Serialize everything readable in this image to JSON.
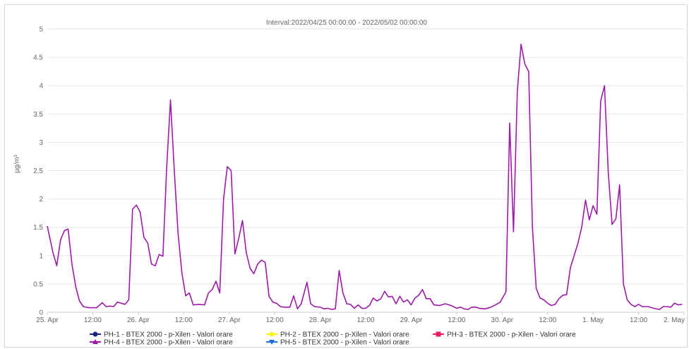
{
  "chart_data": {
    "type": "line",
    "title": "Interval:2022/04/25 00:00:00 - 2022/05/02 00:00:00",
    "xlabel": "",
    "ylabel": "µg/m³",
    "ylim": [
      0,
      5
    ],
    "yticks": [
      "0",
      "0.5",
      "1",
      "1.5",
      "2",
      "2.5",
      "3",
      "3.5",
      "4",
      "4.5",
      "5"
    ],
    "xlim": [
      "2022-04-25 00:00",
      "2022-05-02 00:00"
    ],
    "xticks": [
      {
        "t": "2022-04-25 00:00",
        "label": "25. Apr"
      },
      {
        "t": "2022-04-25 12:00",
        "label": "12:00"
      },
      {
        "t": "2022-04-26 00:00",
        "label": "26. Apr"
      },
      {
        "t": "2022-04-26 12:00",
        "label": "12:00"
      },
      {
        "t": "2022-04-27 00:00",
        "label": "27. Apr"
      },
      {
        "t": "2022-04-27 12:00",
        "label": "12:00"
      },
      {
        "t": "2022-04-28 00:00",
        "label": "28. Apr"
      },
      {
        "t": "2022-04-28 12:00",
        "label": "12:00"
      },
      {
        "t": "2022-04-29 00:00",
        "label": "29. Apr"
      },
      {
        "t": "2022-04-29 12:00",
        "label": "12:00"
      },
      {
        "t": "2022-04-30 00:00",
        "label": "30. Apr"
      },
      {
        "t": "2022-04-30 12:00",
        "label": "12:00"
      },
      {
        "t": "2022-05-01 00:00",
        "label": "1. May"
      },
      {
        "t": "2022-05-01 12:00",
        "label": "12:00"
      },
      {
        "t": "2022-05-02 00:00",
        "label": "2. May"
      }
    ],
    "grid": true,
    "legend_position": "bottom",
    "series": [
      {
        "name": "PH-1 - BTEX 2000 - p-Xilen - Valori orare",
        "color": "#1a237e",
        "marker": "circle",
        "points": []
      },
      {
        "name": "PH-2 - BTEX 2000 - p-Xilen - Valori orare",
        "color": "#ffee00",
        "marker": "diamond",
        "points": []
      },
      {
        "name": "PH-3 - BTEX 2000 - p-Xilen - Valori orare",
        "color": "#e91e63",
        "marker": "square",
        "points": []
      },
      {
        "name": "PH-4 - BTEX 2000 - p-Xilen - Valori orare",
        "color": "#9c1aa8",
        "marker": "triangle",
        "points": [
          [
            "2022-04-25 00:00",
            1.52
          ],
          [
            "2022-04-25 01:30",
            1.05
          ],
          [
            "2022-04-25 02:30",
            0.82
          ],
          [
            "2022-04-25 03:30",
            1.28
          ],
          [
            "2022-04-25 04:30",
            1.44
          ],
          [
            "2022-04-25 05:30",
            1.47
          ],
          [
            "2022-04-25 06:30",
            0.85
          ],
          [
            "2022-04-25 07:30",
            0.45
          ],
          [
            "2022-04-25 08:30",
            0.2
          ],
          [
            "2022-04-25 09:30",
            0.1
          ],
          [
            "2022-04-25 11:00",
            0.08
          ],
          [
            "2022-04-25 13:00",
            0.08
          ],
          [
            "2022-04-25 14:30",
            0.17
          ],
          [
            "2022-04-25 15:30",
            0.1
          ],
          [
            "2022-04-25 16:30",
            0.11
          ],
          [
            "2022-04-25 17:30",
            0.1
          ],
          [
            "2022-04-25 18:30",
            0.18
          ],
          [
            "2022-04-25 20:30",
            0.14
          ],
          [
            "2022-04-25 21:30",
            0.22
          ],
          [
            "2022-04-25 22:30",
            1.82
          ],
          [
            "2022-04-25 23:30",
            1.89
          ],
          [
            "2022-04-26 00:30",
            1.77
          ],
          [
            "2022-04-26 01:30",
            1.32
          ],
          [
            "2022-04-26 02:30",
            1.22
          ],
          [
            "2022-04-26 03:30",
            0.85
          ],
          [
            "2022-04-26 04:30",
            0.82
          ],
          [
            "2022-04-26 05:30",
            1.02
          ],
          [
            "2022-04-26 06:30",
            0.99
          ],
          [
            "2022-04-26 07:30",
            2.55
          ],
          [
            "2022-04-26 08:30",
            3.75
          ],
          [
            "2022-04-26 09:30",
            2.5
          ],
          [
            "2022-04-26 10:30",
            1.4
          ],
          [
            "2022-04-26 11:30",
            0.7
          ],
          [
            "2022-04-26 12:30",
            0.29
          ],
          [
            "2022-04-26 13:30",
            0.34
          ],
          [
            "2022-04-26 14:30",
            0.13
          ],
          [
            "2022-04-26 16:00",
            0.14
          ],
          [
            "2022-04-26 17:30",
            0.13
          ],
          [
            "2022-04-26 18:30",
            0.34
          ],
          [
            "2022-04-26 19:30",
            0.4
          ],
          [
            "2022-04-26 20:30",
            0.55
          ],
          [
            "2022-04-26 21:30",
            0.34
          ],
          [
            "2022-04-26 22:30",
            2.0
          ],
          [
            "2022-04-26 23:30",
            2.57
          ],
          [
            "2022-04-27 00:30",
            2.5
          ],
          [
            "2022-04-27 01:30",
            1.03
          ],
          [
            "2022-04-27 02:30",
            1.3
          ],
          [
            "2022-04-27 03:30",
            1.62
          ],
          [
            "2022-04-27 04:30",
            1.05
          ],
          [
            "2022-04-27 05:30",
            0.78
          ],
          [
            "2022-04-27 06:30",
            0.68
          ],
          [
            "2022-04-27 07:30",
            0.85
          ],
          [
            "2022-04-27 08:30",
            0.92
          ],
          [
            "2022-04-27 09:30",
            0.88
          ],
          [
            "2022-04-27 10:30",
            0.28
          ],
          [
            "2022-04-27 11:30",
            0.18
          ],
          [
            "2022-04-27 12:30",
            0.16
          ],
          [
            "2022-04-27 13:30",
            0.1
          ],
          [
            "2022-04-27 14:30",
            0.09
          ],
          [
            "2022-04-27 16:00",
            0.09
          ],
          [
            "2022-04-27 17:00",
            0.29
          ],
          [
            "2022-04-27 18:00",
            0.06
          ],
          [
            "2022-04-27 19:00",
            0.15
          ],
          [
            "2022-04-27 20:30",
            0.53
          ],
          [
            "2022-04-27 21:30",
            0.15
          ],
          [
            "2022-04-27 22:30",
            0.1
          ],
          [
            "2022-04-28 00:00",
            0.09
          ],
          [
            "2022-04-28 01:00",
            0.06
          ],
          [
            "2022-04-28 02:00",
            0.07
          ],
          [
            "2022-04-28 03:00",
            0.05
          ],
          [
            "2022-04-28 04:00",
            0.06
          ],
          [
            "2022-04-28 05:00",
            0.74
          ],
          [
            "2022-04-28 06:00",
            0.34
          ],
          [
            "2022-04-28 07:00",
            0.15
          ],
          [
            "2022-04-28 08:00",
            0.14
          ],
          [
            "2022-04-28 09:00",
            0.07
          ],
          [
            "2022-04-28 10:00",
            0.13
          ],
          [
            "2022-04-28 11:00",
            0.07
          ],
          [
            "2022-04-28 12:00",
            0.07
          ],
          [
            "2022-04-28 13:00",
            0.12
          ],
          [
            "2022-04-28 14:00",
            0.25
          ],
          [
            "2022-04-28 15:00",
            0.2
          ],
          [
            "2022-04-28 16:00",
            0.24
          ],
          [
            "2022-04-28 17:00",
            0.37
          ],
          [
            "2022-04-28 18:00",
            0.27
          ],
          [
            "2022-04-28 19:00",
            0.28
          ],
          [
            "2022-04-28 20:00",
            0.15
          ],
          [
            "2022-04-28 21:00",
            0.28
          ],
          [
            "2022-04-28 22:00",
            0.18
          ],
          [
            "2022-04-28 23:00",
            0.22
          ],
          [
            "2022-04-29 00:00",
            0.13
          ],
          [
            "2022-04-29 01:00",
            0.25
          ],
          [
            "2022-04-29 02:00",
            0.3
          ],
          [
            "2022-04-29 03:00",
            0.4
          ],
          [
            "2022-04-29 04:00",
            0.24
          ],
          [
            "2022-04-29 05:00",
            0.24
          ],
          [
            "2022-04-29 06:00",
            0.13
          ],
          [
            "2022-04-29 07:30",
            0.12
          ],
          [
            "2022-04-29 09:00",
            0.15
          ],
          [
            "2022-04-29 10:30",
            0.12
          ],
          [
            "2022-04-29 12:00",
            0.07
          ],
          [
            "2022-04-29 13:00",
            0.09
          ],
          [
            "2022-04-29 14:00",
            0.06
          ],
          [
            "2022-04-29 15:00",
            0.05
          ],
          [
            "2022-04-29 16:00",
            0.09
          ],
          [
            "2022-04-29 17:00",
            0.09
          ],
          [
            "2022-04-29 18:00",
            0.07
          ],
          [
            "2022-04-29 19:30",
            0.06
          ],
          [
            "2022-04-29 21:00",
            0.09
          ],
          [
            "2022-04-29 22:30",
            0.14
          ],
          [
            "2022-04-29 23:30",
            0.18
          ],
          [
            "2022-04-30 01:00",
            0.36
          ],
          [
            "2022-04-30 02:00",
            3.34
          ],
          [
            "2022-04-30 03:00",
            1.42
          ],
          [
            "2022-04-30 04:00",
            3.9
          ],
          [
            "2022-04-30 05:00",
            4.73
          ],
          [
            "2022-04-30 06:00",
            4.38
          ],
          [
            "2022-04-30 07:00",
            4.25
          ],
          [
            "2022-04-30 08:00",
            1.5
          ],
          [
            "2022-04-30 09:00",
            0.42
          ],
          [
            "2022-04-30 10:00",
            0.25
          ],
          [
            "2022-04-30 11:00",
            0.22
          ],
          [
            "2022-04-30 12:00",
            0.16
          ],
          [
            "2022-04-30 13:00",
            0.12
          ],
          [
            "2022-04-30 14:00",
            0.14
          ],
          [
            "2022-04-30 15:00",
            0.24
          ],
          [
            "2022-04-30 16:00",
            0.3
          ],
          [
            "2022-04-30 17:00",
            0.31
          ],
          [
            "2022-04-30 18:00",
            0.78
          ],
          [
            "2022-04-30 19:00",
            1.0
          ],
          [
            "2022-04-30 20:00",
            1.22
          ],
          [
            "2022-04-30 21:00",
            1.5
          ],
          [
            "2022-04-30 22:00",
            1.98
          ],
          [
            "2022-04-30 23:00",
            1.63
          ],
          [
            "2022-05-01 00:00",
            1.88
          ],
          [
            "2022-05-01 01:00",
            1.73
          ],
          [
            "2022-05-01 02:00",
            3.73
          ],
          [
            "2022-05-01 03:00",
            4.0
          ],
          [
            "2022-05-01 04:00",
            2.48
          ],
          [
            "2022-05-01 05:00",
            1.55
          ],
          [
            "2022-05-01 06:00",
            1.65
          ],
          [
            "2022-05-01 07:00",
            2.25
          ],
          [
            "2022-05-01 08:00",
            0.5
          ],
          [
            "2022-05-01 09:00",
            0.22
          ],
          [
            "2022-05-01 10:00",
            0.14
          ],
          [
            "2022-05-01 11:00",
            0.1
          ],
          [
            "2022-05-01 12:00",
            0.14
          ],
          [
            "2022-05-01 13:00",
            0.1
          ],
          [
            "2022-05-01 14:30",
            0.1
          ],
          [
            "2022-05-01 16:00",
            0.07
          ],
          [
            "2022-05-01 17:30",
            0.05
          ],
          [
            "2022-05-01 18:30",
            0.1
          ],
          [
            "2022-05-01 19:30",
            0.1
          ],
          [
            "2022-05-01 20:30",
            0.09
          ],
          [
            "2022-05-01 21:30",
            0.16
          ],
          [
            "2022-05-01 22:30",
            0.13
          ],
          [
            "2022-05-01 23:30",
            0.14
          ]
        ]
      },
      {
        "name": "PH-5 - BTEX 2000 - p-Xilen - Valori orare",
        "color": "#1e6fd9",
        "marker": "triangle-down",
        "points": []
      }
    ]
  }
}
